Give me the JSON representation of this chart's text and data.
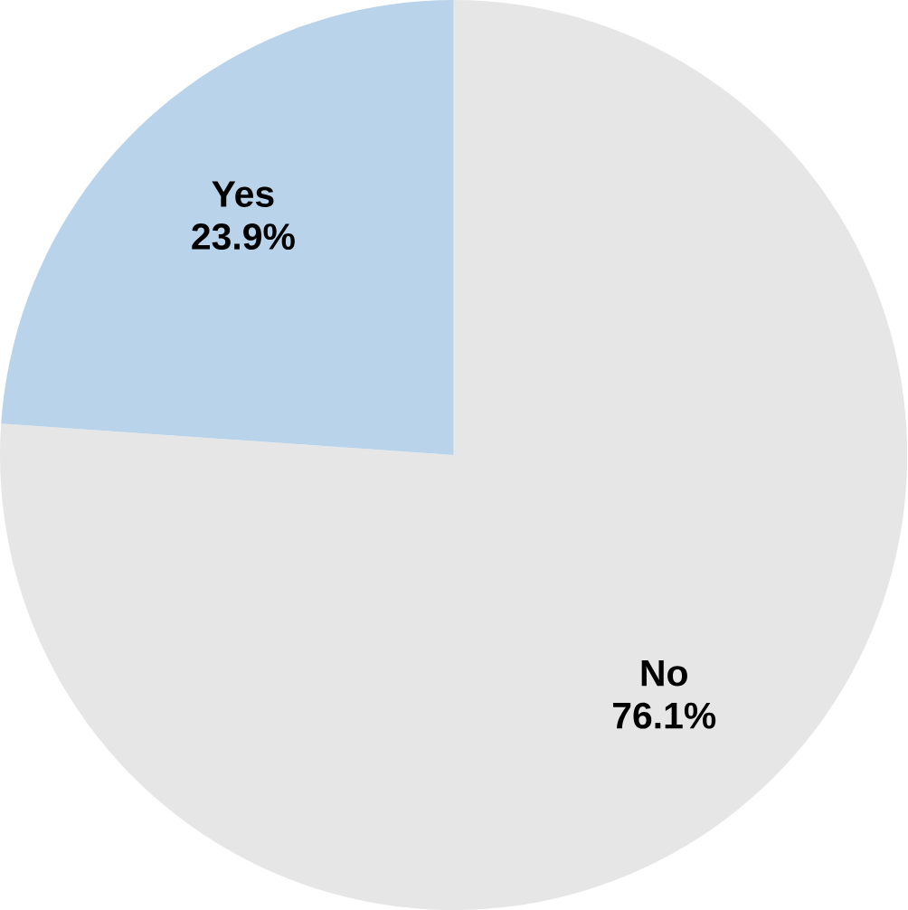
{
  "chart_data": {
    "type": "pie",
    "categories": [
      "No",
      "Yes"
    ],
    "values": [
      76.1,
      23.9
    ],
    "colors": [
      "#e6e6e6",
      "#b9d3ea"
    ],
    "value_labels": [
      "76.1%",
      "23.9%"
    ]
  }
}
